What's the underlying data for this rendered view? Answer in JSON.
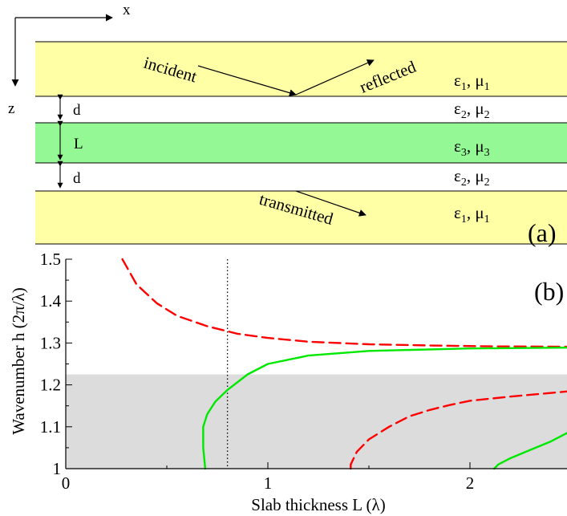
{
  "colors": {
    "outer_layer": "#ffffa5",
    "core_layer": "#94f994",
    "band": "#dcdcdc",
    "curve_red": "#ff0000",
    "curve_green": "#00e800",
    "line": "#000000"
  },
  "axes_labels": {
    "x": "x",
    "z": "z"
  },
  "waves": {
    "incident": "incident",
    "reflected": "reflected",
    "transmitted": "transmitted"
  },
  "layers": [
    {
      "id": "top",
      "eps": "ε",
      "eps_sub": "1",
      "mu": "μ",
      "mu_sub": "1",
      "color": "outer_layer"
    },
    {
      "id": "gap-top",
      "eps": "ε",
      "eps_sub": "2",
      "mu": "μ",
      "mu_sub": "2",
      "thickness_label": "d"
    },
    {
      "id": "slab",
      "eps": "ε",
      "eps_sub": "3",
      "mu": "μ",
      "mu_sub": "3",
      "thickness_label": "L",
      "color": "core_layer"
    },
    {
      "id": "gap-bottom",
      "eps": "ε",
      "eps_sub": "2",
      "mu": "μ",
      "mu_sub": "2",
      "thickness_label": "d"
    },
    {
      "id": "bottom",
      "eps": "ε",
      "eps_sub": "1",
      "mu": "μ",
      "mu_sub": "1",
      "color": "outer_layer"
    }
  ],
  "panel_labels": {
    "a": "(a)",
    "b": "(b)"
  },
  "chart_data": {
    "type": "line",
    "xlabel": "Slab thickness L (λ)",
    "ylabel": "Wavenumber h (2π/λ)",
    "xlim": [
      0,
      2.5
    ],
    "ylim": [
      1.0,
      1.5
    ],
    "xticks": [
      0,
      1,
      2
    ],
    "yticks": [
      1,
      1.1,
      1.2,
      1.3,
      1.4,
      1.5
    ],
    "shaded_band": {
      "y_from": 1.0,
      "y_to": 1.225
    },
    "vertical_line": {
      "x": 0.8,
      "style": "dotted"
    },
    "series": [
      {
        "style": "dashed",
        "color": "curve_red",
        "x": [
          0.28,
          0.35,
          0.45,
          0.55,
          0.7,
          0.85,
          1.0,
          1.2,
          1.5,
          1.8,
          2.1,
          2.5
        ],
        "y": [
          1.5,
          1.44,
          1.395,
          1.365,
          1.34,
          1.322,
          1.312,
          1.303,
          1.297,
          1.294,
          1.292,
          1.291
        ]
      },
      {
        "style": "solid",
        "color": "curve_green",
        "x": [
          0.69,
          0.68,
          0.68,
          0.7,
          0.74,
          0.8,
          0.9,
          1.0,
          1.2,
          1.5,
          2.0,
          2.5
        ],
        "y": [
          1.0,
          1.05,
          1.1,
          1.13,
          1.16,
          1.188,
          1.225,
          1.25,
          1.27,
          1.281,
          1.287,
          1.289
        ]
      },
      {
        "style": "dashed",
        "color": "curve_red",
        "x": [
          1.41,
          1.41,
          1.44,
          1.5,
          1.6,
          1.7,
          1.8,
          1.9,
          2.0,
          2.2,
          2.5
        ],
        "y": [
          1.0,
          1.01,
          1.04,
          1.07,
          1.1,
          1.125,
          1.14,
          1.152,
          1.162,
          1.172,
          1.185
        ]
      },
      {
        "style": "solid",
        "color": "curve_green",
        "x": [
          2.12,
          2.14,
          2.2,
          2.3,
          2.4,
          2.5
        ],
        "y": [
          1.0,
          1.01,
          1.025,
          1.045,
          1.065,
          1.09
        ]
      }
    ]
  }
}
